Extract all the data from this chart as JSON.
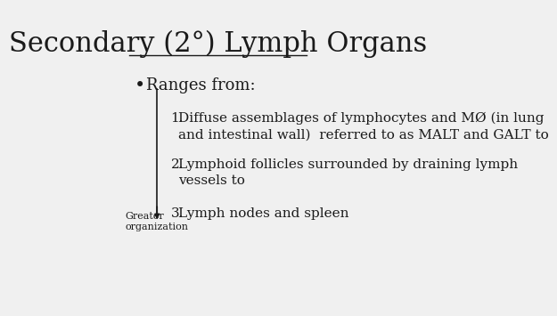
{
  "title": "Secondary (2°) Lymph Organs",
  "background_color": "#f0f0f0",
  "text_color": "#1a1a1a",
  "bullet_point": "Ranges from:",
  "items": [
    "Diffuse assemblages of lymphocytes and MØ (in lung\nand intestinal wall)  referred to as MALT and GALT to",
    "Lymphoid follicles surrounded by draining lymph\nvessels to",
    "Lymph nodes and spleen"
  ],
  "arrow_label": "Greater\norganization",
  "title_fontsize": 22,
  "bullet_fontsize": 13,
  "item_fontsize": 11,
  "label_fontsize": 8
}
